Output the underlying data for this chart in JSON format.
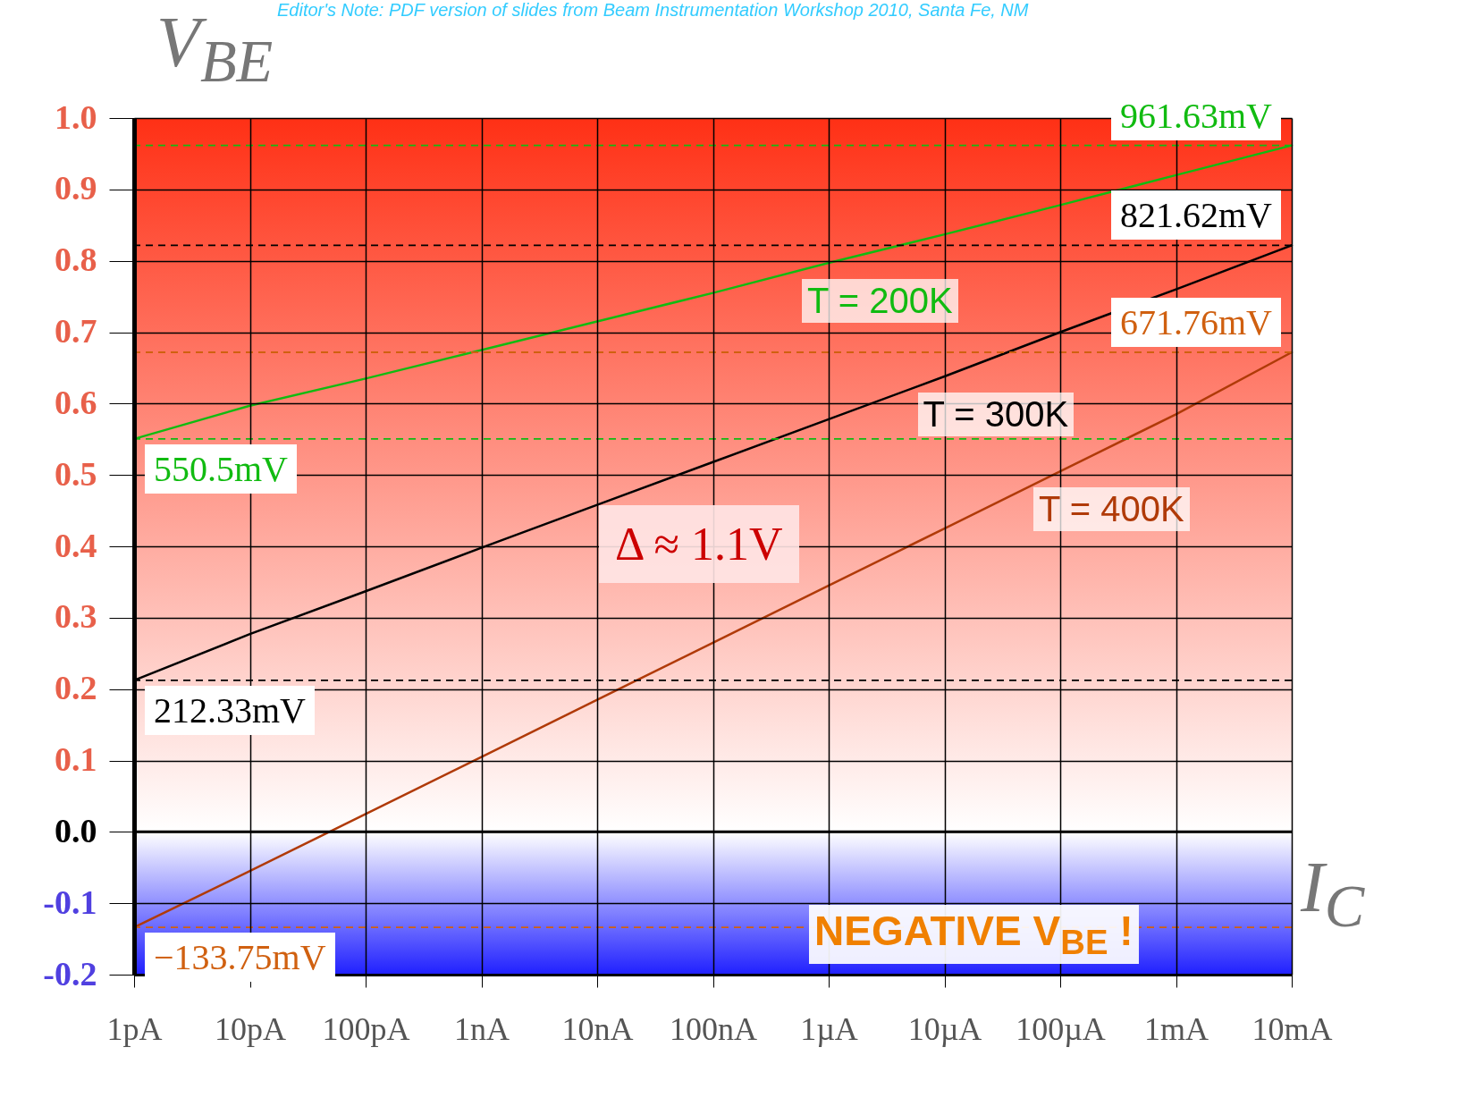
{
  "chart_data": {
    "type": "line",
    "xlabel": "I$_{C}$",
    "ylabel": "V$_{BE}$",
    "grid": true,
    "legend": false,
    "categories": [
      "1pA",
      "10pA",
      "100pA",
      "1nA",
      "10nA",
      "100nA",
      "1µA",
      "10µA",
      "100µA",
      "1mA",
      "10mA"
    ],
    "ylim": [
      -0.2,
      1.0
    ],
    "yticks": [
      {
        "value": 1,
        "label": "1.0"
      },
      0.9,
      0.8,
      0.7,
      0.6,
      0.5,
      0.4,
      0.3,
      0.2,
      0.1,
      {
        "value": 0,
        "label": "0.0"
      },
      -0.1,
      -0.2
    ],
    "series": [
      {
        "name": "T = 200K",
        "color": "#11bb11",
        "values": [
          0.5505,
          0.597,
          0.635,
          0.675,
          0.715,
          0.755,
          0.797,
          0.837,
          0.878,
          0.92,
          0.9616
        ]
      },
      {
        "name": "T = 300K",
        "color": "#000000",
        "values": [
          0.2123,
          0.277,
          0.337,
          0.398,
          0.458,
          0.518,
          0.578,
          0.638,
          0.7,
          0.76,
          0.8216
        ]
      },
      {
        "name": "T = 400K",
        "color": "#b03a08",
        "values": [
          -0.1338,
          -0.055,
          0.025,
          0.105,
          0.185,
          0.265,
          0.345,
          0.425,
          0.505,
          0.585,
          0.6718
        ]
      }
    ],
    "bands": [
      {
        "axis": "y",
        "from": 0,
        "to": 1,
        "color": "#ff3015"
      },
      {
        "axis": "y",
        "from": -0.2,
        "to": 0,
        "color": "#2020ff"
      }
    ],
    "ref_lines": [
      {
        "axis": "y",
        "value": 0.5505,
        "color": "#11bb11",
        "line_style": "dashed"
      },
      {
        "axis": "y",
        "value": 0.9616,
        "color": "#11bb11",
        "line_style": "dashed"
      },
      {
        "axis": "y",
        "value": 0.2123,
        "color": "#000000",
        "line_style": "dashed"
      },
      {
        "axis": "y",
        "value": 0.8216,
        "color": "#000000",
        "line_style": "dashed"
      },
      {
        "axis": "y",
        "value": -0.1338,
        "color": "#d06010",
        "line_style": "dashed"
      },
      {
        "axis": "y",
        "value": 0.6718,
        "color": "#d06010",
        "line_style": "dashed"
      },
      {
        "axis": "y",
        "value": 0,
        "color": "#000000",
        "line_style": "solid"
      }
    ],
    "annotations": [
      "Editor's Note:  PDF version of slides from Beam Instrumentation Workshop 2010, Santa Fe, NM",
      "Δ ≈ 1.1V",
      "NEGATIVE V$_{BE}$ !",
      {
        "text": "550.5mV",
        "x": "1pA",
        "y": 0.5505
      },
      {
        "text": "961.63mV",
        "x": "10mA",
        "y": 0.9616
      },
      {
        "text": "212.33mV",
        "x": "1pA",
        "y": 0.2123
      },
      {
        "text": "821.62mV",
        "x": "10mA",
        "y": 0.8216
      },
      {
        "text": "−133.75mV",
        "x": "1pA",
        "y": -0.1338
      },
      {
        "text": "671.76mV",
        "x": "10mA",
        "y": 0.6718
      }
    ]
  }
}
